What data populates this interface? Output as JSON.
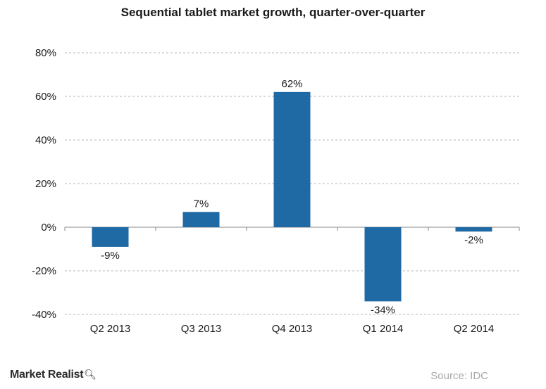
{
  "chart_data": {
    "type": "bar",
    "title": "Sequential tablet market growth, quarter-over-quarter",
    "categories": [
      "Q2 2013",
      "Q3 2013",
      "Q4 2013",
      "Q1 2014",
      "Q2 2014"
    ],
    "values": [
      -9,
      7,
      62,
      -34,
      -2
    ],
    "data_labels": [
      "-9%",
      "7%",
      "62%",
      "-34%",
      "-2%"
    ],
    "ylim": [
      -40,
      80
    ],
    "yticks": [
      80,
      60,
      40,
      20,
      0,
      -20,
      -40
    ],
    "ytick_labels": [
      "80%",
      "60%",
      "40%",
      "20%",
      "0%",
      "-20%",
      "-40%"
    ],
    "xlabel": "",
    "ylabel": "",
    "grid": true,
    "bar_color": "#1f6aa5"
  },
  "branding": {
    "logo_text": "Market Realist",
    "logo_icon": "magnifier-icon"
  },
  "source": {
    "text": "Source: IDC"
  }
}
